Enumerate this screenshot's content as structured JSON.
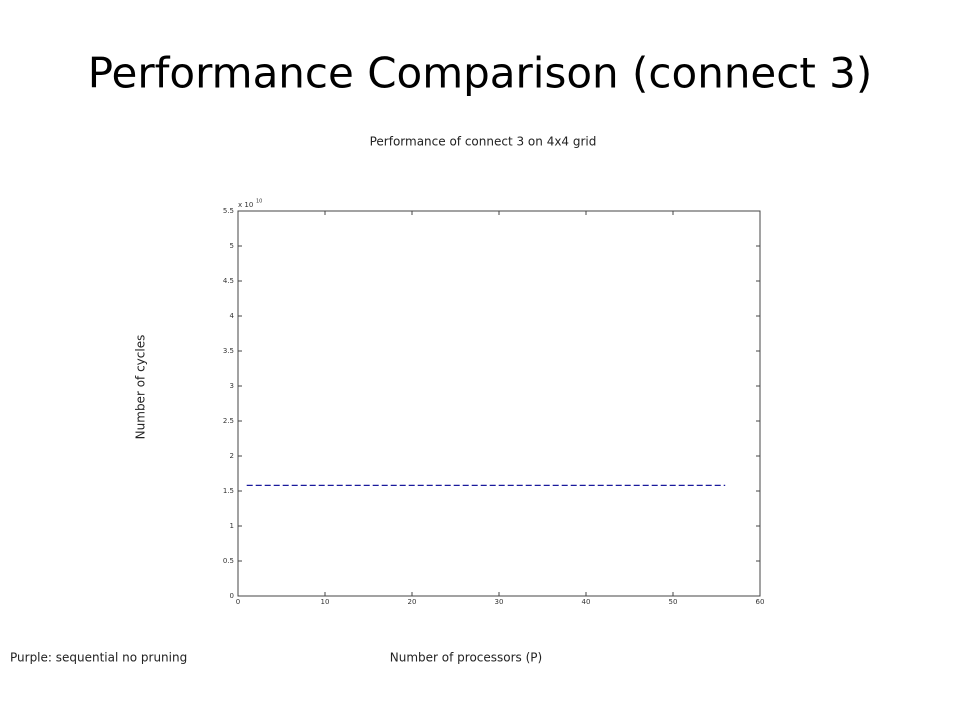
{
  "slide_title": "Performance Comparison (connect 3)",
  "note": "Purple: sequential no pruning",
  "chart_data": {
    "type": "line",
    "title": "Performance of connect 3 on 4x4 grid",
    "xlabel": "Number of processors (P)",
    "ylabel": "Number of cycles",
    "y_scale_label": {
      "base": "x 10",
      "exponent": "10"
    },
    "x": [
      1,
      56
    ],
    "values": [
      1.58,
      1.58
    ],
    "color": "#1a1a9c",
    "line_style": "dashed",
    "xlim": [
      0,
      60
    ],
    "xticks": [
      0,
      10,
      20,
      30,
      40,
      50,
      60
    ],
    "ylim": [
      0,
      5.5
    ],
    "yticks": [
      0,
      0.5,
      1,
      1.5,
      2,
      2.5,
      3,
      3.5,
      4,
      4.5,
      5,
      5.5
    ],
    "grid": false
  }
}
